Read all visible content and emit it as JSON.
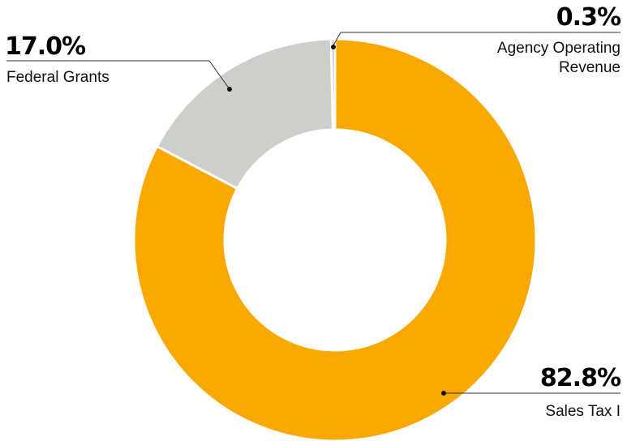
{
  "chart_data": {
    "type": "pie",
    "donut": true,
    "title": "",
    "slices": [
      {
        "label": "Sales Tax I",
        "value": 82.8,
        "value_label": "82.8%",
        "color": "#F9A800"
      },
      {
        "label": "Federal Grants",
        "value": 17.0,
        "value_label": "17.0%",
        "color": "#CFCFC9"
      },
      {
        "label": "Agency Operating Revenue",
        "label_lines": [
          "Agency Operating",
          "Revenue"
        ],
        "value": 0.3,
        "value_label": "0.3%",
        "color": "#BBBBB4"
      }
    ]
  }
}
